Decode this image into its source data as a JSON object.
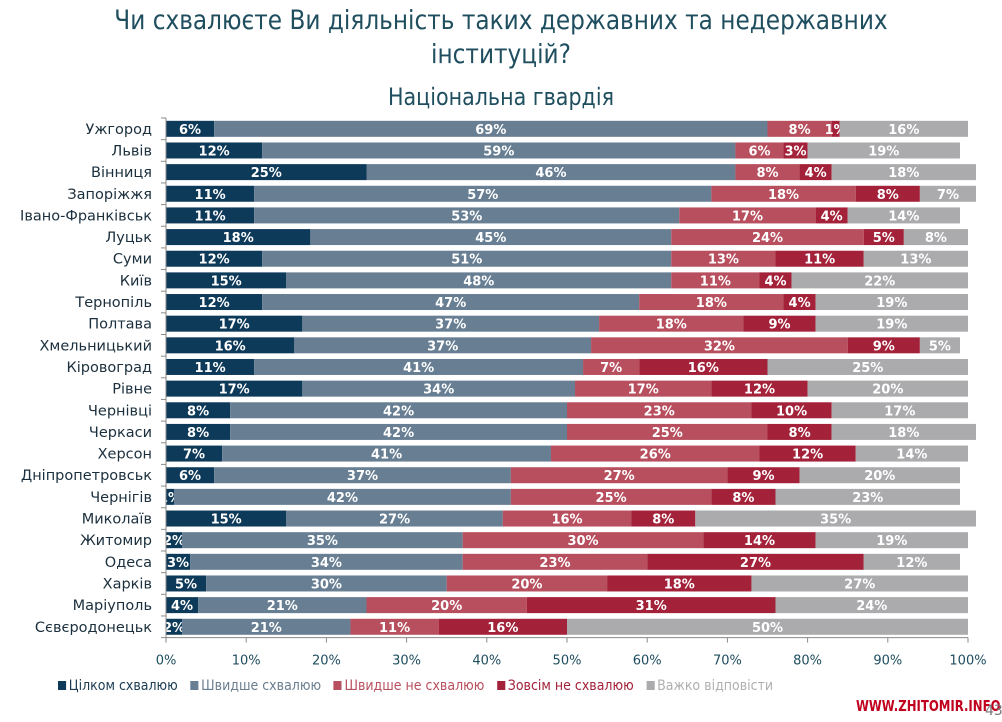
{
  "title_line1": "Чи схвалюєте Ви діяльність таких державних та недержавних",
  "title_line2": "інституцій?",
  "chart_data": {
    "type": "bar",
    "orientation": "horizontal",
    "stacked": true,
    "title": "Національна гвардія",
    "xlabel": "",
    "ylabel": "",
    "xlim": [
      0,
      100
    ],
    "x_ticks": [
      "0%",
      "10%",
      "20%",
      "30%",
      "40%",
      "50%",
      "60%",
      "70%",
      "80%",
      "90%",
      "100%"
    ],
    "grid": false,
    "legend_position": "bottom",
    "categories": [
      "Ужгород",
      "Львів",
      "Вінниця",
      "Запоріжжя",
      "Івано-Франківськ",
      "Луцьк",
      "Суми",
      "Київ",
      "Тернопіль",
      "Полтава",
      "Хмельницький",
      "Кіровоград",
      "Рівне",
      "Чернівці",
      "Черкаси",
      "Херсон",
      "Дніпропетровськ",
      "Чернігів",
      "Миколаїв",
      "Житомир",
      "Одеса",
      "Харків",
      "Маріуполь",
      "Сєвєродонецьк"
    ],
    "series": [
      {
        "name": "Цілком схвалюю",
        "color": "#0e3a5a",
        "legend_text_color": "#1a3b52",
        "values": [
          6,
          12,
          25,
          11,
          11,
          18,
          12,
          15,
          12,
          17,
          16,
          11,
          17,
          8,
          8,
          7,
          6,
          1,
          15,
          2,
          3,
          5,
          4,
          2
        ]
      },
      {
        "name": "Швидше схвалюю",
        "color": "#677e93",
        "legend_text_color": "#6b7f90",
        "values": [
          69,
          59,
          46,
          57,
          53,
          45,
          51,
          48,
          47,
          37,
          37,
          41,
          34,
          42,
          42,
          41,
          37,
          42,
          27,
          35,
          34,
          30,
          21,
          21
        ]
      },
      {
        "name": "Швидше не схвалюю",
        "color": "#b84f5e",
        "legend_text_color": "#b84f5e",
        "values": [
          8,
          6,
          8,
          18,
          17,
          24,
          13,
          11,
          18,
          18,
          32,
          7,
          17,
          23,
          25,
          26,
          27,
          25,
          16,
          30,
          23,
          20,
          20,
          11
        ]
      },
      {
        "name": "Зовсім не схвалюю",
        "color": "#a3223a",
        "legend_text_color": "#a3223a",
        "values": [
          1,
          3,
          4,
          8,
          4,
          5,
          11,
          4,
          4,
          9,
          9,
          16,
          12,
          10,
          8,
          12,
          9,
          8,
          8,
          14,
          27,
          18,
          31,
          16
        ]
      },
      {
        "name": "Важко відповісти",
        "color": "#ababae",
        "legend_text_color": "#b0b0b0",
        "values": [
          16,
          19,
          18,
          7,
          14,
          8,
          13,
          22,
          19,
          19,
          5,
          25,
          20,
          17,
          18,
          14,
          20,
          23,
          35,
          19,
          12,
          27,
          24,
          50
        ]
      }
    ]
  },
  "watermark": "WWW.ZHITOMIR.INFO",
  "page_number": "43"
}
